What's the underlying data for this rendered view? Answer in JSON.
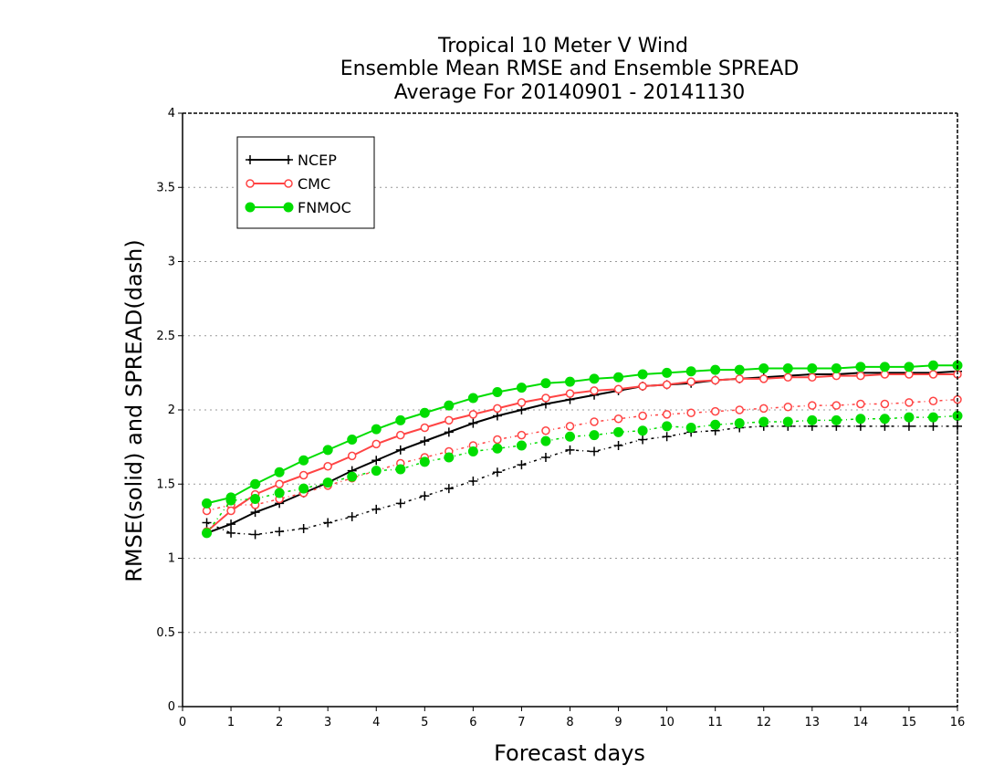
{
  "chart_data": {
    "type": "line",
    "title": [
      "Tropical 10 Meter V Wind",
      "Ensemble Mean RMSE and Ensemble SPREAD",
      "Average For 20140901 - 20141130"
    ],
    "xlabel": "Forecast days",
    "ylabel": "RMSE(solid) and SPREAD(dash)",
    "xlim": [
      0,
      16
    ],
    "ylim": [
      0,
      4
    ],
    "x_ticks": [
      "0",
      "1",
      "2",
      "3",
      "4",
      "5",
      "6",
      "7",
      "8",
      "9",
      "10",
      "11",
      "12",
      "13",
      "14",
      "15",
      "16"
    ],
    "y_ticks": [
      "0",
      "0.5",
      "1",
      "1.5",
      "2",
      "2.5",
      "3",
      "3.5",
      "4"
    ],
    "grid": "horizontal dotted",
    "legend_position": "top-left",
    "x": [
      0.5,
      1,
      1.5,
      2,
      2.5,
      3,
      3.5,
      4,
      4.5,
      5,
      5.5,
      6,
      6.5,
      7,
      7.5,
      8,
      8.5,
      9,
      9.5,
      10,
      10.5,
      11,
      11.5,
      12,
      12.5,
      13,
      13.5,
      14,
      14.5,
      15,
      15.5,
      16
    ],
    "series": [
      {
        "name": "NCEP",
        "color": "#000000",
        "marker": "plus",
        "rmse": [
          1.17,
          1.23,
          1.31,
          1.37,
          1.44,
          1.51,
          1.59,
          1.66,
          1.73,
          1.79,
          1.85,
          1.91,
          1.96,
          2.0,
          2.04,
          2.07,
          2.1,
          2.13,
          2.16,
          2.17,
          2.18,
          2.2,
          2.21,
          2.22,
          2.23,
          2.24,
          2.24,
          2.25,
          2.25,
          2.25,
          2.25,
          2.26
        ],
        "spread": [
          1.24,
          1.17,
          1.16,
          1.18,
          1.2,
          1.24,
          1.28,
          1.33,
          1.37,
          1.42,
          1.47,
          1.52,
          1.58,
          1.63,
          1.68,
          1.73,
          1.72,
          1.76,
          1.8,
          1.82,
          1.85,
          1.86,
          1.88,
          1.89,
          1.89,
          1.89,
          1.89,
          1.89,
          1.89,
          1.89,
          1.89,
          1.89
        ]
      },
      {
        "name": "CMC",
        "color": "#ff4444",
        "marker": "open-circle",
        "rmse": [
          1.18,
          1.32,
          1.43,
          1.5,
          1.56,
          1.62,
          1.69,
          1.77,
          1.83,
          1.88,
          1.93,
          1.97,
          2.01,
          2.05,
          2.08,
          2.11,
          2.13,
          2.14,
          2.16,
          2.17,
          2.19,
          2.2,
          2.21,
          2.21,
          2.22,
          2.22,
          2.23,
          2.23,
          2.24,
          2.24,
          2.24,
          2.24
        ],
        "spread": [
          1.32,
          1.36,
          1.36,
          1.4,
          1.44,
          1.49,
          1.54,
          1.59,
          1.64,
          1.68,
          1.72,
          1.76,
          1.8,
          1.83,
          1.86,
          1.89,
          1.92,
          1.94,
          1.96,
          1.97,
          1.98,
          1.99,
          2.0,
          2.01,
          2.02,
          2.03,
          2.03,
          2.04,
          2.04,
          2.05,
          2.06,
          2.07
        ]
      },
      {
        "name": "FNMOC",
        "color": "#00dd00",
        "marker": "filled-circle",
        "rmse": [
          1.37,
          1.41,
          1.5,
          1.58,
          1.66,
          1.73,
          1.8,
          1.87,
          1.93,
          1.98,
          2.03,
          2.08,
          2.12,
          2.15,
          2.18,
          2.19,
          2.21,
          2.22,
          2.24,
          2.25,
          2.26,
          2.27,
          2.27,
          2.28,
          2.28,
          2.28,
          2.28,
          2.29,
          2.29,
          2.29,
          2.3,
          2.3
        ],
        "spread": [
          1.17,
          1.39,
          1.4,
          1.44,
          1.47,
          1.51,
          1.55,
          1.59,
          1.6,
          1.65,
          1.68,
          1.72,
          1.74,
          1.76,
          1.79,
          1.82,
          1.83,
          1.85,
          1.86,
          1.89,
          1.88,
          1.9,
          1.91,
          1.92,
          1.92,
          1.93,
          1.93,
          1.94,
          1.94,
          1.95,
          1.95,
          1.96
        ]
      }
    ]
  }
}
